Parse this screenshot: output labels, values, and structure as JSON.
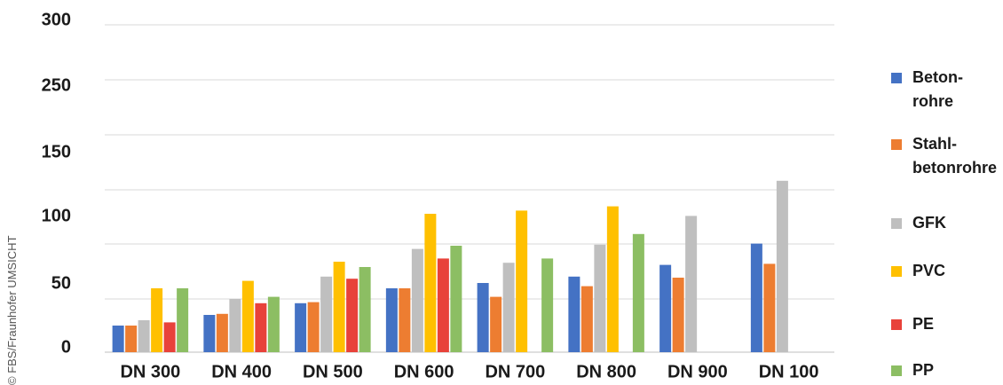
{
  "credit": "© FBS/Fraunhofer UMSICHT",
  "chart_data": {
    "type": "bar",
    "categories": [
      "DN 300",
      "DN 400",
      "DN 500",
      "DN 600",
      "DN 700",
      "DN 800",
      "DN 900",
      "DN 100"
    ],
    "y_tick_labels": [
      "0",
      "50",
      "100",
      "150",
      "250",
      "300"
    ],
    "grid": true,
    "legend_position": "right",
    "series": [
      {
        "name": "Beton-\nrohre",
        "color": "#4472C4",
        "values": [
          25,
          35,
          46,
          60,
          65,
          71,
          82,
          102
        ]
      },
      {
        "name": "Stahl-\nbetonrohre",
        "color": "#ED7D31",
        "values": [
          25,
          36,
          47,
          60,
          52,
          62,
          70,
          83
        ]
      },
      {
        "name": "GFK",
        "color": "#BFBFBF",
        "values": [
          30,
          50,
          71,
          97,
          84,
          101,
          128,
          161
        ]
      },
      {
        "name": "PVC",
        "color": "#FFC000",
        "values": [
          60,
          67,
          85,
          130,
          133,
          137,
          null,
          null
        ]
      },
      {
        "name": "PE",
        "color": "#E8423A",
        "values": [
          28,
          46,
          69,
          88,
          null,
          null,
          null,
          null
        ]
      },
      {
        "name": "PP",
        "color": "#8CBE63",
        "values": [
          60,
          52,
          80,
          100,
          88,
          111,
          null,
          null
        ]
      }
    ]
  }
}
